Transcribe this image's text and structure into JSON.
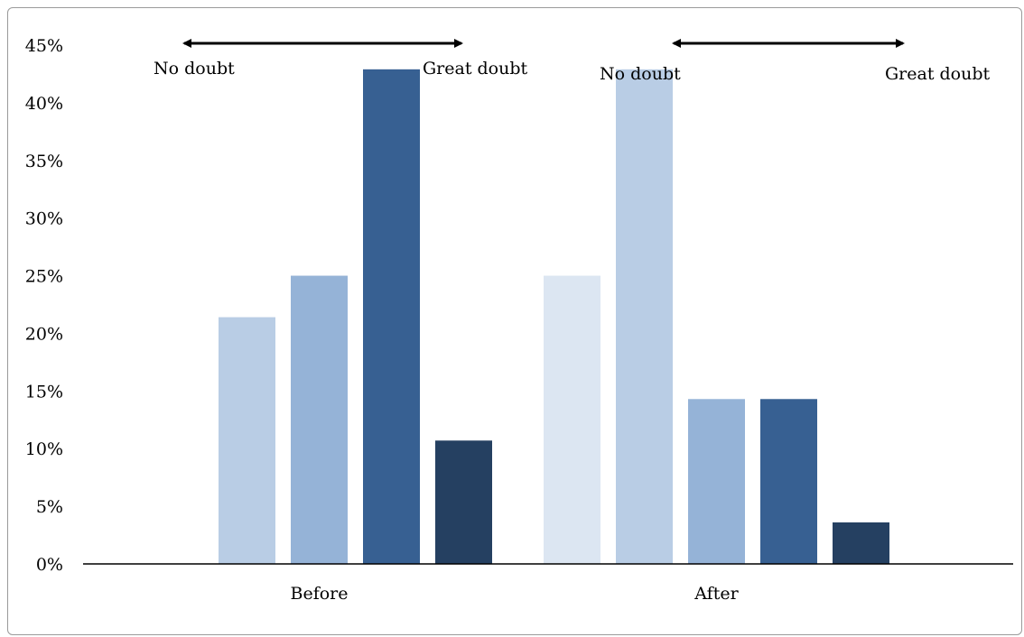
{
  "chart_data": {
    "type": "bar",
    "categories": [
      "Before",
      "After"
    ],
    "ylim": [
      0,
      45
    ],
    "y_tick_labels": [
      "0%",
      "5%",
      "10%",
      "15%",
      "20%",
      "25%",
      "30%",
      "35%",
      "40%",
      "45%"
    ],
    "y_ticks": [
      0,
      5,
      10,
      15,
      20,
      25,
      30,
      35,
      40,
      45
    ],
    "grid": false,
    "legend": "none",
    "groups": [
      {
        "category": "Before",
        "values": [
          0,
          21.4,
          25.0,
          42.9,
          10.7
        ],
        "colors": [
          "#dce6f2",
          "#b9cde5",
          "#95b3d7",
          "#376092",
          "#254061"
        ],
        "annotation": {
          "left_label": "No doubt",
          "right_label": "Great doubt"
        }
      },
      {
        "category": "After",
        "values": [
          25.0,
          42.9,
          14.3,
          14.3,
          3.6
        ],
        "colors": [
          "#dce6f2",
          "#b9cde5",
          "#95b3d7",
          "#376092",
          "#254061"
        ],
        "annotation": {
          "left_label": "No doubt",
          "right_label": "Great doubt"
        }
      }
    ]
  }
}
